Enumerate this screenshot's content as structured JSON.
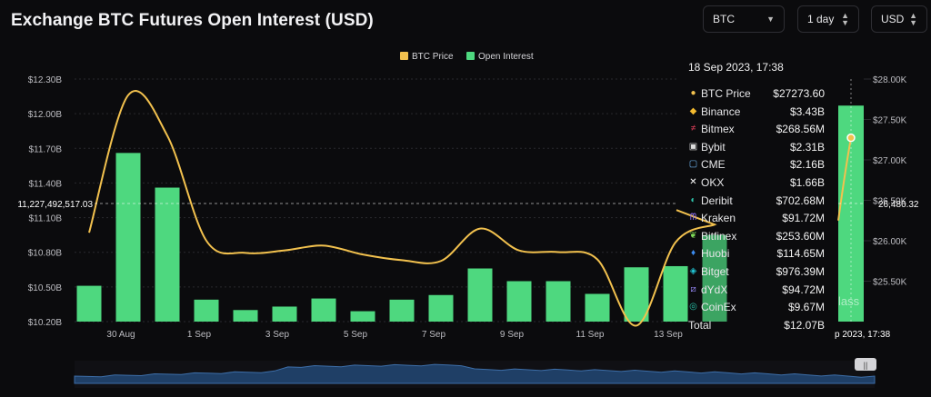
{
  "header": {
    "title": "Exchange BTC Futures Open Interest (USD)",
    "asset_select": "BTC",
    "interval_select": "1 day",
    "currency_select": "USD"
  },
  "colors": {
    "bar": "#4ed87f",
    "bar_highlight": "#4ed87f",
    "price_line": "#f2c14e",
    "grid": "#2a2a2e",
    "background": "#0b0b0d"
  },
  "chart_data": {
    "type": "bar",
    "legend": [
      "BTC Price",
      "Open Interest"
    ],
    "legend_position": "top-center",
    "categories": [
      "29 Aug",
      "30 Aug",
      "31 Aug",
      "1 Sep",
      "2 Sep",
      "3 Sep",
      "4 Sep",
      "5 Sep",
      "6 Sep",
      "7 Sep",
      "8 Sep",
      "9 Sep",
      "10 Sep",
      "11 Sep",
      "12 Sep",
      "13 Sep",
      "14 Sep"
    ],
    "x_tick_labels": [
      "30 Aug",
      "1 Sep",
      "3 Sep",
      "5 Sep",
      "7 Sep",
      "9 Sep",
      "11 Sep",
      "13 Sep"
    ],
    "series": [
      {
        "name": "Open Interest",
        "axis": "left",
        "values": [
          10.51,
          11.66,
          11.36,
          10.39,
          10.3,
          10.33,
          10.4,
          10.29,
          10.39,
          10.43,
          10.66,
          10.55,
          10.55,
          10.44,
          10.67,
          10.68,
          10.95
        ]
      },
      {
        "name": "BTC Price",
        "axis": "right",
        "values": [
          26100,
          27800,
          27300,
          26000,
          25850,
          25880,
          25940,
          25830,
          25760,
          25750,
          26150,
          25880,
          25860,
          25770,
          24950,
          25980,
          26200
        ]
      }
    ],
    "y_left": {
      "min": 10.2,
      "max": 12.3,
      "ticks": [
        "$10.20B",
        "$10.50B",
        "$10.80B",
        "$11.10B",
        "$11.40B",
        "$11.70B",
        "$12.00B",
        "$12.30B"
      ]
    },
    "y_right": {
      "min": 25000,
      "max": 28000,
      "ticks": [
        "$25.50K",
        "$26.00K",
        "$26.50K",
        "$27.00K",
        "$27.50K",
        "$28.00K"
      ]
    },
    "crosshair": {
      "left_label": "11,227,492,517.03",
      "right_label": "26,486.32",
      "date_label": "p 2023, 17:38",
      "highlight_value": 12.07,
      "highlight_price": 27273.6
    },
    "grid": true,
    "tooltip": {
      "title": "18 Sep 2023, 17:38",
      "rows": [
        {
          "name": "BTC Price",
          "value": "$27273.60",
          "icon": "price-dot",
          "color": "#f2c14e"
        },
        {
          "name": "Binance",
          "value": "$3.43B",
          "icon": "binance-icon",
          "color": "#f3ba2f"
        },
        {
          "name": "Bitmex",
          "value": "$268.56M",
          "icon": "bitmex-icon",
          "color": "#e0405a"
        },
        {
          "name": "Bybit",
          "value": "$2.31B",
          "icon": "bybit-icon",
          "color": "#dddddd"
        },
        {
          "name": "CME",
          "value": "$2.16B",
          "icon": "cme-icon",
          "color": "#6fb4f0"
        },
        {
          "name": "OKX",
          "value": "$1.66B",
          "icon": "okx-icon",
          "color": "#ffffff"
        },
        {
          "name": "Deribit",
          "value": "$702.68M",
          "icon": "deribit-icon",
          "color": "#30c9b0"
        },
        {
          "name": "Kraken",
          "value": "$91.72M",
          "icon": "kraken-icon",
          "color": "#8a6cf0"
        },
        {
          "name": "Bitfinex",
          "value": "$253.60M",
          "icon": "bitfinex-icon",
          "color": "#7ed957"
        },
        {
          "name": "Huobi",
          "value": "$114.65M",
          "icon": "huobi-icon",
          "color": "#3c8cf0"
        },
        {
          "name": "Bitget",
          "value": "$976.39M",
          "icon": "bitget-icon",
          "color": "#22c8d8"
        },
        {
          "name": "dYdX",
          "value": "$94.72M",
          "icon": "dydx-icon",
          "color": "#9b8cff"
        },
        {
          "name": "CoinEx",
          "value": "$9.67M",
          "icon": "coinex-icon",
          "color": "#27c2a8"
        }
      ],
      "total": {
        "name": "Total",
        "value": "$12.07B"
      }
    },
    "watermark": "lass"
  }
}
